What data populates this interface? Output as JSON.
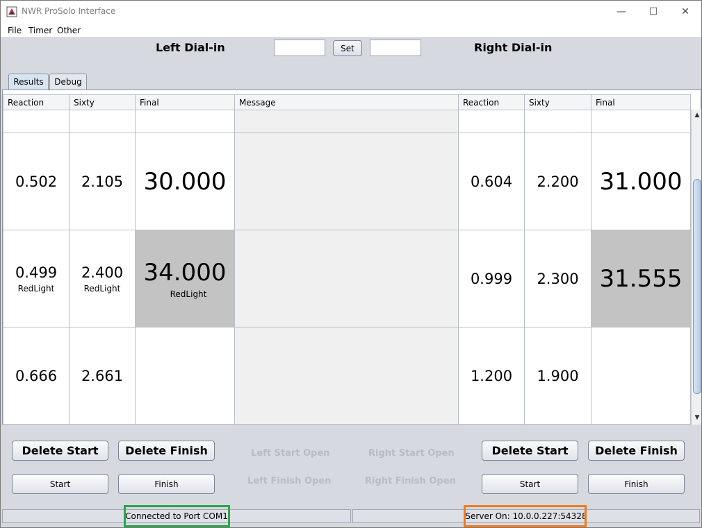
{
  "window": {
    "title": "NWR ProSolo Interface",
    "controls": {
      "minimize": "—",
      "maximize": "☐",
      "close": "✕"
    }
  },
  "menu": {
    "items": [
      "File",
      "Timer",
      "Other"
    ]
  },
  "dial": {
    "left_label": "Left Dial-in",
    "right_label": "Right Dial-in",
    "left_value": "",
    "right_value": "",
    "set_label": "Set"
  },
  "tabs": [
    {
      "label": "Results",
      "active": true
    },
    {
      "label": "Debug",
      "active": false
    }
  ],
  "table": {
    "headers": [
      "Reaction",
      "Sixty",
      "Final",
      "Message",
      "Reaction",
      "Sixty",
      "Final"
    ],
    "rows": [
      {
        "left_reaction": "",
        "left_sixty": "",
        "left_final": "",
        "message": "",
        "right_reaction": "",
        "right_sixty": "",
        "right_final": ""
      },
      {
        "left_reaction": "0.502",
        "left_sixty": "2.105",
        "left_final": "30.000",
        "message": "",
        "right_reaction": "0.604",
        "right_sixty": "2.200",
        "right_final": "31.000"
      },
      {
        "left_reaction": "0.499",
        "left_reaction_note": "RedLight",
        "left_sixty": "2.400",
        "left_sixty_note": "RedLight",
        "left_final": "34.000",
        "left_final_note": "RedLight",
        "message": "",
        "right_reaction": "0.999",
        "right_sixty": "2.300",
        "right_final": "31.555"
      },
      {
        "left_reaction": "0.666",
        "left_sixty": "2.661",
        "left_final": "",
        "message": "",
        "right_reaction": "1.200",
        "right_sixty": "1.900",
        "right_final": ""
      }
    ]
  },
  "controls": {
    "left_delete_start": "Delete Start",
    "left_delete_finish": "Delete Finish",
    "left_start": "Start",
    "left_finish": "Finish",
    "right_delete_start": "Delete Start",
    "right_delete_finish": "Delete Finish",
    "right_start": "Start",
    "right_finish": "Finish",
    "left_start_status": "Left Start Open",
    "left_finish_status": "Left Finish Open",
    "right_start_status": "Right Start Open",
    "right_finish_status": "Right Finish Open"
  },
  "status": {
    "port": "Connected to Port COM1",
    "server": "Server On: 10.0.0.227:54328"
  },
  "colors": {
    "redlight": "#ee0000",
    "highlight_port": "#2aa84a",
    "highlight_server": "#f07c1e"
  }
}
